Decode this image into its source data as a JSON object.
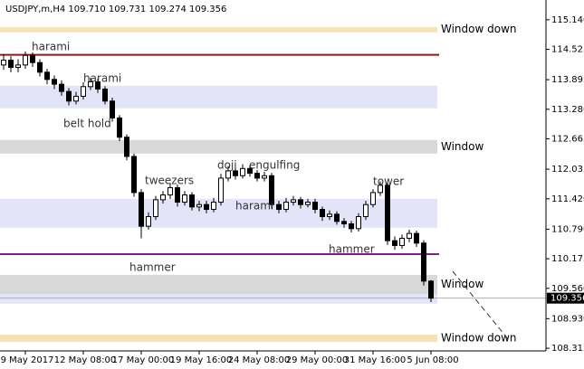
{
  "chart_data": {
    "type": "candlestick",
    "title": "USDJPY,m,H4  109.710 109.731 109.274 109.356",
    "categories": [
      null,
      null,
      null,
      "9 May 2017",
      null,
      null,
      null,
      null,
      null,
      null,
      null,
      "12 May 08:00",
      null,
      null,
      null,
      null,
      null,
      null,
      null,
      "17 May 00:00",
      null,
      null,
      null,
      null,
      null,
      null,
      null,
      "19 May 16:00",
      null,
      null,
      null,
      null,
      null,
      null,
      null,
      "24 May 08:00",
      null,
      null,
      null,
      null,
      null,
      null,
      null,
      "29 May 00:00",
      null,
      null,
      null,
      null,
      null,
      null,
      null,
      "31 May 16:00",
      null,
      null,
      null,
      null,
      null,
      null,
      null,
      "5 Jun 08:00"
    ],
    "open": [
      114.2,
      114.3,
      114.15,
      114.2,
      114.4,
      114.25,
      114.05,
      113.9,
      113.8,
      113.65,
      113.45,
      113.55,
      113.75,
      113.85,
      113.7,
      113.45,
      113.1,
      112.7,
      112.3,
      111.55,
      110.85,
      111.05,
      111.4,
      111.5,
      111.65,
      111.35,
      111.5,
      111.25,
      111.3,
      111.2,
      111.35,
      111.85,
      112.0,
      111.9,
      112.05,
      111.95,
      111.85,
      111.9,
      111.3,
      111.2,
      111.35,
      111.4,
      111.3,
      111.35,
      111.2,
      111.05,
      111.1,
      110.95,
      110.9,
      110.8,
      111.05,
      111.3,
      111.55,
      111.7,
      110.55,
      110.45,
      110.6,
      110.7,
      110.5,
      109.71
    ],
    "high": [
      114.42,
      114.38,
      114.32,
      114.48,
      114.46,
      114.32,
      114.12,
      113.98,
      113.88,
      113.72,
      113.64,
      113.84,
      113.94,
      113.92,
      113.76,
      113.52,
      113.16,
      112.76,
      112.36,
      111.62,
      111.14,
      111.48,
      111.58,
      111.74,
      111.72,
      111.58,
      111.56,
      111.38,
      111.38,
      111.44,
      111.94,
      112.1,
      112.08,
      112.14,
      112.12,
      112.02,
      111.98,
      111.96,
      111.38,
      111.44,
      111.48,
      111.46,
      111.42,
      111.42,
      111.26,
      111.18,
      111.16,
      111.02,
      110.96,
      111.12,
      111.38,
      111.62,
      111.78,
      111.76,
      110.64,
      110.68,
      110.78,
      110.76,
      110.56,
      109.731
    ],
    "low": [
      114.1,
      114.05,
      114.05,
      114.12,
      114.16,
      113.96,
      113.8,
      113.7,
      113.56,
      113.36,
      113.38,
      113.48,
      113.68,
      113.62,
      113.38,
      113.02,
      112.62,
      112.22,
      111.46,
      110.6,
      110.78,
      110.98,
      111.32,
      111.42,
      111.26,
      111.28,
      111.18,
      111.16,
      111.12,
      111.14,
      111.28,
      111.78,
      111.82,
      111.84,
      111.88,
      111.78,
      111.78,
      111.22,
      111.12,
      111.14,
      111.28,
      111.22,
      111.24,
      111.12,
      110.96,
      110.98,
      110.88,
      110.82,
      110.72,
      110.74,
      110.98,
      111.24,
      111.48,
      110.46,
      110.36,
      110.38,
      110.52,
      110.42,
      109.62,
      109.274
    ],
    "close": [
      114.3,
      114.15,
      114.2,
      114.4,
      114.25,
      114.05,
      113.9,
      113.8,
      113.65,
      113.45,
      113.55,
      113.75,
      113.85,
      113.7,
      113.45,
      113.1,
      112.7,
      112.3,
      111.55,
      110.85,
      111.05,
      111.4,
      111.5,
      111.65,
      111.35,
      111.5,
      111.25,
      111.3,
      111.2,
      111.35,
      111.85,
      112.0,
      111.9,
      112.05,
      111.95,
      111.85,
      111.9,
      111.3,
      111.2,
      111.35,
      111.4,
      111.3,
      111.35,
      111.2,
      111.05,
      111.1,
      110.95,
      110.9,
      110.8,
      111.05,
      111.3,
      111.55,
      111.7,
      110.55,
      110.45,
      110.6,
      110.7,
      110.5,
      109.71,
      109.356
    ],
    "ylim": [
      108.26,
      115.55
    ],
    "yticks": [
      {
        "value": 115.14,
        "label": "115.140"
      },
      114.525,
      113.895,
      {
        "value": 113.28,
        "label": "113.280"
      },
      112.665,
      112.035,
      {
        "value": 111.42,
        "label": "111.420"
      },
      {
        "value": 110.79,
        "label": "110.790"
      },
      110.175,
      {
        "value": 109.56,
        "label": "109.560"
      },
      {
        "value": 108.93,
        "label": "108.930"
      },
      108.315
    ],
    "zones": [
      {
        "high": 114.99,
        "low": 114.88,
        "color": "#f7e2b8",
        "label": "Window down",
        "label_color": "#c8962e"
      },
      {
        "high": 113.77,
        "low": 113.3,
        "color": "#e3e4f8"
      },
      {
        "high": 112.64,
        "low": 112.36,
        "color": "#d8d8d8",
        "label": "Window",
        "label_color": "#8494aa"
      },
      {
        "high": 111.42,
        "low": 110.82,
        "color": "#e3e4f8"
      },
      {
        "high": 109.84,
        "low": 109.44,
        "color": "#d8d8d8",
        "label": "Window",
        "label_color": "#8494aa"
      },
      {
        "high": 109.44,
        "low": 109.24,
        "color": "#e3e4f8"
      },
      {
        "high": 108.6,
        "low": 108.45,
        "color": "#f7e2b8",
        "label": "Window down",
        "label_color": "#c8962e"
      }
    ],
    "lines": [
      {
        "value": 114.41,
        "color": "#8b1a1a"
      },
      {
        "value": 110.27,
        "color": "#8a1a8a"
      }
    ],
    "annotations": [
      "harami",
      "harami",
      "belt hold",
      "tweezers",
      "doji",
      "engulfing",
      "harami",
      "tower",
      "hammer",
      "hammer"
    ]
  }
}
